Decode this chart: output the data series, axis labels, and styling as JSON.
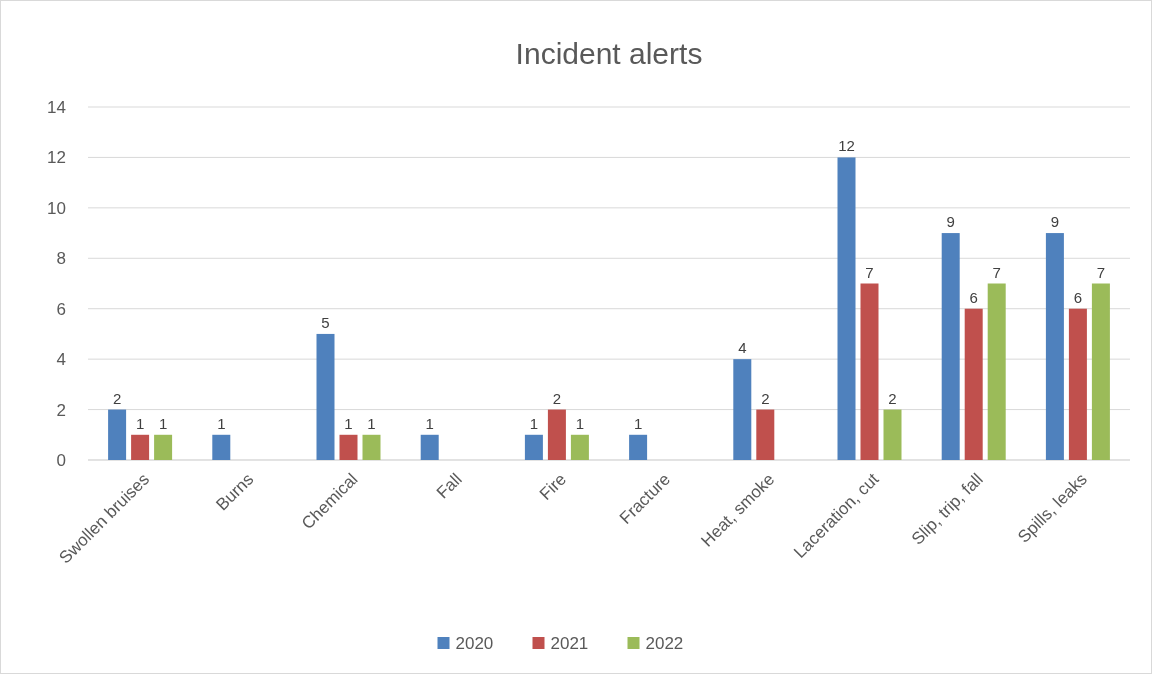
{
  "chart_data": {
    "type": "bar",
    "title": "Incident alerts",
    "categories": [
      "Swollen bruises",
      "Burns",
      "Chemical",
      "Fall",
      "Fire",
      "Fracture",
      "Heat, smoke",
      "Laceration, cut",
      "Slip, trip, fall",
      "Spills, leaks"
    ],
    "series": [
      {
        "name": "2020",
        "color": "#4f81bd",
        "values": [
          2,
          1,
          5,
          1,
          1,
          1,
          4,
          12,
          9,
          9
        ]
      },
      {
        "name": "2021",
        "color": "#c0504d",
        "values": [
          1,
          null,
          1,
          null,
          2,
          null,
          2,
          7,
          6,
          6
        ]
      },
      {
        "name": "2022",
        "color": "#9bbb59",
        "values": [
          1,
          null,
          1,
          null,
          1,
          null,
          null,
          2,
          7,
          7
        ]
      }
    ],
    "ylim": [
      0,
      14
    ],
    "yticks": [
      0,
      2,
      4,
      6,
      8,
      10,
      12,
      14
    ],
    "grid": "y",
    "legend": "bottom",
    "data_labels": true
  }
}
